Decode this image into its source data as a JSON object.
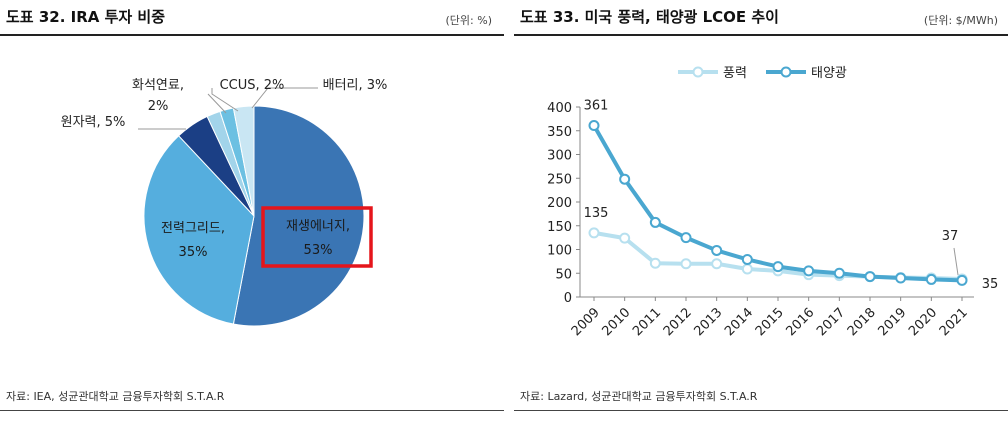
{
  "left": {
    "title": "도표 32. IRA 투자 비중",
    "unit": "(단위: %)",
    "source": "자료: IEA, 성균관대학교 금융투자학회 S.T.A.R"
  },
  "right": {
    "title": "도표 33. 미국 풍력, 태양광 LCOE 추이",
    "unit": "(단위: $/MWh)",
    "source": "자료: Lazard, 성균관대학교 금융투자학회 S.T.A.R"
  },
  "chart_data": [
    {
      "type": "pie",
      "title": "IRA 투자 비중",
      "slices": [
        {
          "label": "재생에너지,",
          "pct_label": "53%",
          "value": 53,
          "color": "#3a75b4"
        },
        {
          "label": "전력그리드,",
          "pct_label": "35%",
          "value": 35,
          "color": "#55aede"
        },
        {
          "label": "원자력, 5%",
          "pct_label": "",
          "value": 5,
          "color": "#1b3f85"
        },
        {
          "label": "화석연료,",
          "pct_label": "2%",
          "value": 2,
          "color": "#a2d4ea"
        },
        {
          "label": "CCUS, 2%",
          "pct_label": "",
          "value": 2,
          "color": "#6cc0e2"
        },
        {
          "label": "배터리, 3%",
          "pct_label": "",
          "value": 3,
          "color": "#c9e6f3"
        }
      ],
      "highlight": "재생에너지"
    },
    {
      "type": "line",
      "title": "미국 풍력, 태양광 LCOE 추이",
      "categories": [
        "2009",
        "2010",
        "2011",
        "2012",
        "2013",
        "2014",
        "2015",
        "2016",
        "2017",
        "2018",
        "2019",
        "2020",
        "2021"
      ],
      "series": [
        {
          "name": "풍력",
          "color": "#b7e0ef",
          "values": [
            135,
            124,
            71,
            70,
            70,
            59,
            55,
            47,
            45,
            43,
            41,
            40,
            38
          ]
        },
        {
          "name": "태양광",
          "color": "#4aa7d0",
          "values": [
            361,
            248,
            157,
            125,
            98,
            79,
            64,
            55,
            50,
            43,
            40,
            37,
            35
          ]
        }
      ],
      "ylim": [
        0,
        400
      ],
      "yticks": [
        0,
        50,
        100,
        150,
        200,
        250,
        300,
        350,
        400
      ],
      "annotations": [
        "361",
        "135",
        "37",
        "35"
      ],
      "legend": "top-center",
      "grid": false
    }
  ]
}
